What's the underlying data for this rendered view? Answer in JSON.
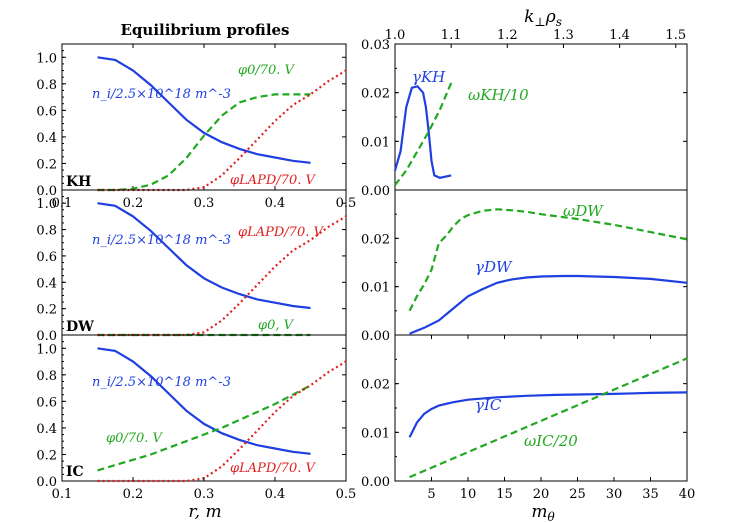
{
  "figure": {
    "left_title": "Equilibrium profiles",
    "left_xlabel": "r, m",
    "right_xlabel": "m",
    "right_xlabel_sub": "θ",
    "right_top_axis_label": "k",
    "right_top_axis_label_rest": "ρ",
    "right_top_axis_sub1": "⊥",
    "right_top_axis_sub2": "s"
  },
  "chart_data": [
    {
      "type": "line",
      "panel": "left-top",
      "panel_label": "KH",
      "xlim": [
        0.1,
        0.5
      ],
      "ylim": [
        0.0,
        1.1
      ],
      "xticks": [
        "0.1",
        "0.2",
        "0.3",
        "0.4",
        "0.5"
      ],
      "yticks": [
        "0.0",
        "0.2",
        "0.4",
        "0.6",
        "0.8",
        "1.0"
      ],
      "x": [
        0.15,
        0.175,
        0.2,
        0.225,
        0.25,
        0.275,
        0.3,
        0.325,
        0.35,
        0.375,
        0.4,
        0.425,
        0.45,
        0.475,
        0.5
      ],
      "series": [
        {
          "label": "n_i/2.5×10^18 m^-3",
          "color": "#1f3fe0",
          "style": "solid",
          "values": [
            1.0,
            0.98,
            0.9,
            0.79,
            0.66,
            0.53,
            0.43,
            0.36,
            0.31,
            0.27,
            0.245,
            0.22,
            0.205,
            null,
            null
          ]
        },
        {
          "label": "φ0/70. V",
          "color": "#22a822",
          "style": "dashed",
          "values": [
            0.0,
            0.0,
            0.01,
            0.04,
            0.11,
            0.24,
            0.41,
            0.56,
            0.66,
            0.7,
            0.72,
            0.72,
            0.72,
            null,
            null
          ]
        },
        {
          "label": "φLAPD/70. V",
          "color": "#e02020",
          "style": "dotted",
          "values": [
            0.0,
            0.0,
            0.0,
            0.0,
            0.0,
            0.0,
            0.02,
            0.11,
            0.24,
            0.38,
            0.52,
            0.64,
            0.72,
            0.82,
            0.9
          ]
        }
      ]
    },
    {
      "type": "line",
      "panel": "left-middle",
      "panel_label": "DW",
      "xlim": [
        0.1,
        0.5
      ],
      "ylim": [
        0.0,
        1.1
      ],
      "yticks": [
        "0.0",
        "0.2",
        "0.4",
        "0.6",
        "0.8",
        "1.0"
      ],
      "x": [
        0.15,
        0.175,
        0.2,
        0.225,
        0.25,
        0.275,
        0.3,
        0.325,
        0.35,
        0.375,
        0.4,
        0.425,
        0.45,
        0.475,
        0.5
      ],
      "series": [
        {
          "label": "n_i/2.5×10^18 m^-3",
          "color": "#1f3fe0",
          "style": "solid",
          "values": [
            1.0,
            0.98,
            0.9,
            0.79,
            0.66,
            0.53,
            0.43,
            0.36,
            0.31,
            0.27,
            0.245,
            0.22,
            0.205,
            null,
            null
          ]
        },
        {
          "label": "φ0, V",
          "color": "#22a822",
          "style": "dashed",
          "values": [
            0.0,
            0.0,
            0.0,
            0.0,
            0.0,
            0.0,
            0.0,
            0.0,
            0.0,
            0.0,
            0.0,
            0.0,
            0.0,
            null,
            null
          ]
        },
        {
          "label": "φLAPD/70. V",
          "color": "#e02020",
          "style": "dotted",
          "values": [
            0.0,
            0.0,
            0.0,
            0.0,
            0.0,
            0.0,
            0.02,
            0.11,
            0.24,
            0.38,
            0.52,
            0.64,
            0.72,
            0.82,
            0.9
          ]
        }
      ]
    },
    {
      "type": "line",
      "panel": "left-bottom",
      "panel_label": "IC",
      "xlim": [
        0.1,
        0.5
      ],
      "ylim": [
        0.0,
        1.1
      ],
      "yticks": [
        "0.0",
        "0.2",
        "0.4",
        "0.6",
        "0.8",
        "1.0"
      ],
      "x": [
        0.15,
        0.175,
        0.2,
        0.225,
        0.25,
        0.275,
        0.3,
        0.325,
        0.35,
        0.375,
        0.4,
        0.425,
        0.45,
        0.475,
        0.5
      ],
      "series": [
        {
          "label": "n_i/2.5×10^18 m^-3",
          "color": "#1f3fe0",
          "style": "solid",
          "values": [
            1.0,
            0.98,
            0.9,
            0.79,
            0.66,
            0.53,
            0.43,
            0.36,
            0.31,
            0.27,
            0.245,
            0.22,
            0.205,
            null,
            null
          ]
        },
        {
          "label": "φ0/70. V",
          "color": "#22a822",
          "style": "dashed",
          "values": [
            0.08,
            0.12,
            0.16,
            0.2,
            0.25,
            0.3,
            0.35,
            0.4,
            0.46,
            0.52,
            0.58,
            0.65,
            0.72,
            null,
            null
          ]
        },
        {
          "label": "φLAPD/70. V",
          "color": "#e02020",
          "style": "dotted",
          "values": [
            0.0,
            0.0,
            0.0,
            0.0,
            0.0,
            0.0,
            0.02,
            0.11,
            0.24,
            0.38,
            0.52,
            0.64,
            0.72,
            0.82,
            0.9
          ]
        }
      ]
    },
    {
      "type": "line",
      "panel": "right-top",
      "xlim": [
        1.0,
        1.52
      ],
      "ylim": [
        0.0,
        0.03
      ],
      "top_xticks": [
        "1.0",
        "1.1",
        "1.2",
        "1.3",
        "1.4",
        "1.5"
      ],
      "yticks": [
        "0.00",
        "0.01",
        "0.02",
        "0.03"
      ],
      "series": [
        {
          "label": "γKH",
          "color": "#1f3fe0",
          "style": "solid",
          "x": [
            1.0,
            1.01,
            1.02,
            1.03,
            1.04,
            1.05,
            1.055,
            1.06,
            1.065,
            1.07,
            1.08,
            1.1
          ],
          "values": [
            0.004,
            0.008,
            0.017,
            0.021,
            0.0213,
            0.02,
            0.017,
            0.012,
            0.006,
            0.003,
            0.0025,
            0.003
          ]
        },
        {
          "label": "ωKH/10",
          "color": "#22a822",
          "style": "dashed",
          "x": [
            1.0,
            1.02,
            1.04,
            1.06,
            1.08,
            1.1
          ],
          "values": [
            0.001,
            0.004,
            0.008,
            0.012,
            0.0165,
            0.022
          ]
        }
      ]
    },
    {
      "type": "line",
      "panel": "right-middle",
      "xlim": [
        0,
        40
      ],
      "ylim": [
        0.0,
        0.03
      ],
      "yticks": [
        "0.00",
        "0.01",
        "0.02"
      ],
      "series": [
        {
          "label": "ωDW",
          "color": "#22a822",
          "style": "dashed",
          "x": [
            2,
            3,
            4,
            5,
            6,
            7,
            8,
            9,
            10,
            12,
            14,
            16,
            18,
            20,
            25,
            30,
            35,
            40
          ],
          "values": [
            0.005,
            0.008,
            0.0105,
            0.0135,
            0.019,
            0.0205,
            0.0225,
            0.024,
            0.0248,
            0.0257,
            0.026,
            0.0258,
            0.0255,
            0.025,
            0.024,
            0.0228,
            0.0213,
            0.0198
          ]
        },
        {
          "label": "γDW",
          "color": "#1f3fe0",
          "style": "solid",
          "x": [
            2,
            4,
            6,
            8,
            10,
            12,
            14,
            16,
            18,
            20,
            23,
            25,
            30,
            35,
            40
          ],
          "values": [
            0.0003,
            0.0015,
            0.003,
            0.0055,
            0.008,
            0.0095,
            0.0108,
            0.0115,
            0.0119,
            0.0121,
            0.0122,
            0.0122,
            0.012,
            0.0116,
            0.0108
          ]
        }
      ]
    },
    {
      "type": "line",
      "panel": "right-bottom",
      "xlim": [
        0,
        40
      ],
      "ylim": [
        0.0,
        0.03
      ],
      "xticks": [
        "5",
        "10",
        "15",
        "20",
        "25",
        "30",
        "35",
        "40"
      ],
      "yticks": [
        "0.00",
        "0.01",
        "0.02"
      ],
      "series": [
        {
          "label": "γIC",
          "color": "#1f3fe0",
          "style": "solid",
          "x": [
            2,
            3,
            4,
            5,
            6,
            8,
            10,
            14,
            18,
            22,
            26,
            30,
            35,
            40
          ],
          "values": [
            0.009,
            0.012,
            0.0138,
            0.0148,
            0.0155,
            0.0162,
            0.0167,
            0.0172,
            0.0175,
            0.0177,
            0.0178,
            0.0179,
            0.0181,
            0.0182
          ]
        },
        {
          "label": "ωIC/20",
          "color": "#22a822",
          "style": "dashed",
          "x": [
            2,
            40
          ],
          "values": [
            0.0008,
            0.0252
          ]
        }
      ]
    }
  ]
}
